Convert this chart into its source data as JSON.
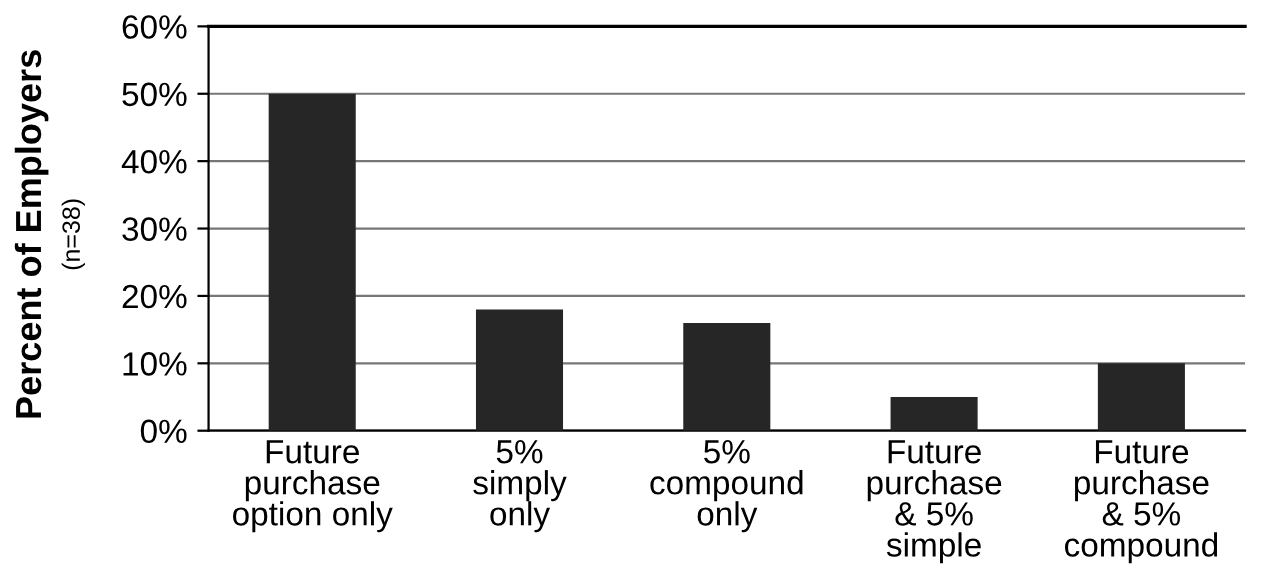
{
  "chart_data": {
    "type": "bar",
    "ylabel": "Percent of Employers",
    "annotations": [
      "(n=38)"
    ],
    "categories": [
      "Future\npurchase\noption only",
      "5%\nsimply\nonly",
      "5%\ncompound\nonly",
      "Future\npurchase\n& 5%\nsimple",
      "Future\npurchase\n& 5%\ncompound"
    ],
    "values": [
      50,
      18,
      16,
      5,
      10
    ],
    "color": "#262626",
    "ylim": [
      0,
      60
    ],
    "yticks": [
      {
        "value": 0,
        "label": "0%"
      },
      {
        "value": 10,
        "label": "10%"
      },
      {
        "value": 20,
        "label": "20%"
      },
      {
        "value": 30,
        "label": "30%"
      },
      {
        "value": 40,
        "label": "40%"
      },
      {
        "value": 50,
        "label": "50%"
      },
      {
        "value": 60,
        "label": "60%"
      }
    ],
    "grid": "y"
  }
}
